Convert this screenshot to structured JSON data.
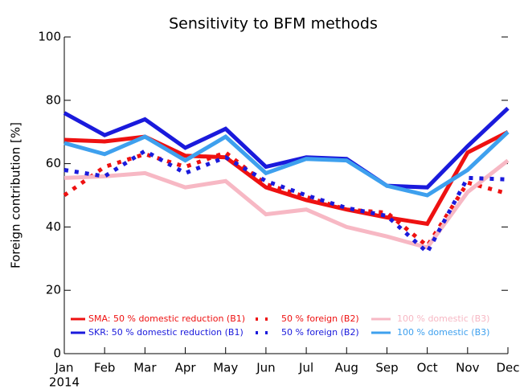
{
  "chart_data": {
    "type": "line",
    "title": "Sensitivity to BFM methods",
    "ylabel": "Foreign contribution [%]",
    "x_sublabel": "2014",
    "categories": [
      "Jan",
      "Feb",
      "Mar",
      "Apr",
      "May",
      "Jun",
      "Jul",
      "Aug",
      "Sep",
      "Oct",
      "Nov",
      "Dec"
    ],
    "ylim": [
      0,
      100
    ],
    "yticks": [
      0,
      20,
      40,
      60,
      80,
      100
    ],
    "series": [
      {
        "name": "SMA: 50 % domestic reduction (B1)",
        "color": "#ee1111",
        "dash": "solid",
        "values": [
          67.5,
          67,
          68.5,
          62.5,
          62,
          52.5,
          48.5,
          45.5,
          43,
          41,
          63.5,
          70
        ]
      },
      {
        "name": "50 % foreign (B2)",
        "color": "#ee1111",
        "dash": "dotted",
        "values": [
          50,
          59,
          63,
          59,
          63.5,
          53.5,
          49.5,
          45.5,
          44.5,
          34,
          54,
          50.5
        ]
      },
      {
        "name": "100 % domestic (B3)",
        "color": "#f7b8c4",
        "dash": "solid",
        "values": [
          55.5,
          56,
          57,
          52.5,
          54.5,
          44,
          45.5,
          40,
          37,
          33.5,
          51,
          61
        ]
      },
      {
        "name": "SKR: 50 % domestic reduction (B1)",
        "color": "#1a1adc",
        "dash": "solid",
        "values": [
          76,
          69,
          74,
          65,
          71,
          59,
          62,
          61.5,
          53,
          52.5,
          65.5,
          77.5
        ]
      },
      {
        "name": "50 % foreign (B2)",
        "color": "#1a1adc",
        "dash": "dotted",
        "values": [
          58,
          56,
          64,
          57,
          62,
          54.5,
          50,
          46,
          43.5,
          32,
          55.5,
          55
        ]
      },
      {
        "name": "100 % domestic (B3)",
        "color": "#3ea0ee",
        "dash": "solid",
        "values": [
          66.5,
          63,
          68.5,
          61,
          68.5,
          57,
          61.5,
          61,
          53,
          50,
          58,
          70
        ]
      }
    ]
  }
}
